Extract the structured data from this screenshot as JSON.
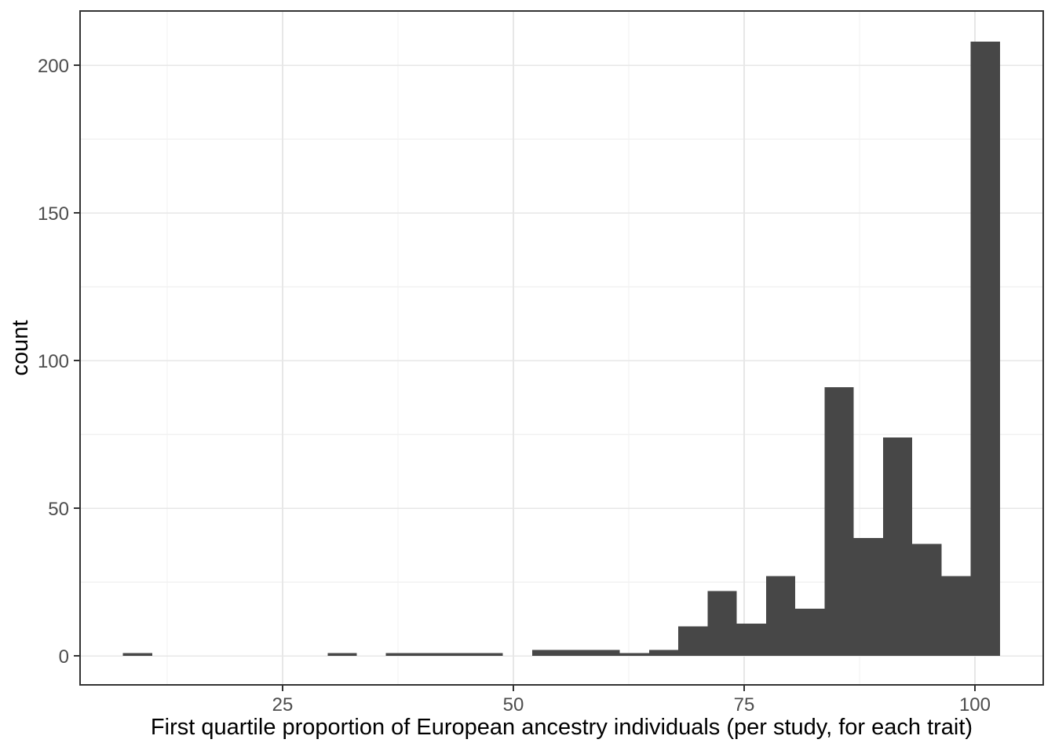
{
  "chart_data": {
    "type": "bar",
    "subtype": "histogram",
    "title": "",
    "xlabel": "First quartile proportion of European ancestry individuals (per study, for each trait)",
    "ylabel": "count",
    "x_ticks": [
      25,
      50,
      75,
      100
    ],
    "y_ticks": [
      0,
      50,
      100,
      150,
      200
    ],
    "x_minor_gridlines": [
      12.5,
      37.5,
      62.5,
      87.5
    ],
    "y_minor_gridlines": [
      25,
      75,
      125,
      175
    ],
    "xlim": [
      3.06,
      107.4
    ],
    "ylim": [
      -9.8,
      218.4
    ],
    "grid": "on",
    "legend": "none",
    "bin_start": 7.7,
    "bin_width": 3.167,
    "bin_centers": [
      9.3,
      12.5,
      15.6,
      18.8,
      22.0,
      25.1,
      28.3,
      31.5,
      34.6,
      37.8,
      41.0,
      44.1,
      47.3,
      50.5,
      53.6,
      56.8,
      60.0,
      63.1,
      66.3,
      69.5,
      72.6,
      75.8,
      79.0,
      82.1,
      85.3,
      88.5,
      91.6,
      94.8,
      98.0,
      101.1
    ],
    "counts": [
      1,
      0,
      0,
      0,
      0,
      0,
      0,
      1,
      0,
      1,
      1,
      1,
      1,
      0,
      2,
      2,
      2,
      1,
      2,
      10,
      22,
      11,
      27,
      16,
      91,
      40,
      74,
      38,
      27,
      208
    ]
  },
  "colors": {
    "bar_fill": "#474747",
    "panel_background": "#ffffff",
    "figure_background": "#ffffff",
    "grid_major": "#e7e7e7",
    "grid_minor": "#f2f2f2",
    "panel_border": "#333333",
    "tick_mark": "#333333",
    "tick_label_text": "#4d4d4d",
    "axis_title_text": "#000000"
  }
}
